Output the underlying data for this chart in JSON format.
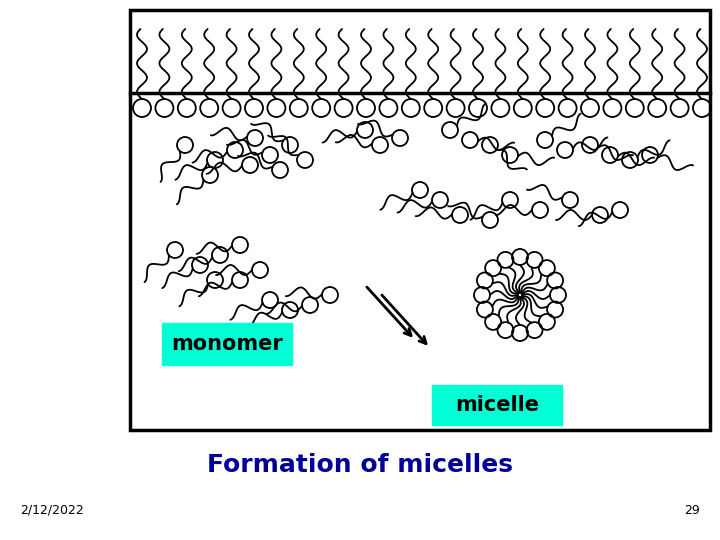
{
  "bg_color": "#ffffff",
  "cyan_color": "#00ffd4",
  "title": "Formation of micelles",
  "title_color": "#000099",
  "title_fontsize": 18,
  "date_text": "2/12/2022",
  "page_num": "29",
  "monomer_label": "monomer",
  "micelle_label": "micelle",
  "label_fontsize": 15,
  "footer_fontsize": 9
}
